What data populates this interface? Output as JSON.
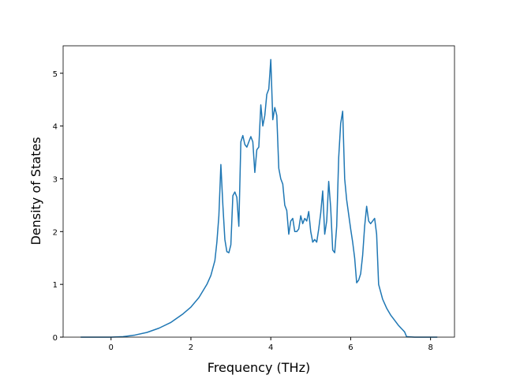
{
  "chart_data": {
    "type": "line",
    "xlabel": "Frequency (THz)",
    "ylabel": "Density of States",
    "x": [
      -0.76,
      -0.4,
      0,
      0.3,
      0.6,
      0.9,
      1.2,
      1.5,
      1.8,
      2.0,
      2.2,
      2.4,
      2.5,
      2.6,
      2.65,
      2.7,
      2.75,
      2.8,
      2.85,
      2.9,
      2.95,
      3.0,
      3.05,
      3.1,
      3.15,
      3.2,
      3.25,
      3.3,
      3.35,
      3.4,
      3.45,
      3.5,
      3.55,
      3.6,
      3.65,
      3.7,
      3.75,
      3.8,
      3.85,
      3.9,
      3.95,
      4.0,
      4.05,
      4.1,
      4.15,
      4.2,
      4.25,
      4.3,
      4.35,
      4.4,
      4.45,
      4.5,
      4.55,
      4.6,
      4.65,
      4.7,
      4.75,
      4.8,
      4.85,
      4.9,
      4.95,
      5.0,
      5.05,
      5.1,
      5.15,
      5.2,
      5.25,
      5.3,
      5.35,
      5.4,
      5.45,
      5.5,
      5.55,
      5.6,
      5.65,
      5.7,
      5.75,
      5.8,
      5.85,
      5.9,
      6.0,
      6.05,
      6.1,
      6.15,
      6.2,
      6.25,
      6.3,
      6.35,
      6.4,
      6.45,
      6.5,
      6.55,
      6.6,
      6.65,
      6.7,
      6.8,
      6.9,
      7.0,
      7.1,
      7.2,
      7.3,
      7.35,
      7.4,
      7.6,
      8.17
    ],
    "series": [
      {
        "color": "#1f77b4",
        "values": [
          0,
          0,
          0,
          0.01,
          0.04,
          0.09,
          0.17,
          0.28,
          0.44,
          0.57,
          0.75,
          1.0,
          1.17,
          1.45,
          1.8,
          2.3,
          3.27,
          2.5,
          1.85,
          1.62,
          1.6,
          1.75,
          2.68,
          2.75,
          2.65,
          2.1,
          3.7,
          3.82,
          3.65,
          3.6,
          3.7,
          3.8,
          3.7,
          3.12,
          3.55,
          3.6,
          4.4,
          4.0,
          4.2,
          4.6,
          4.7,
          5.26,
          4.12,
          4.35,
          4.2,
          3.2,
          3.0,
          2.9,
          2.5,
          2.4,
          1.95,
          2.2,
          2.25,
          2.0,
          2.0,
          2.05,
          2.3,
          2.15,
          2.25,
          2.2,
          2.38,
          2.0,
          1.8,
          1.85,
          1.8,
          2.05,
          2.35,
          2.77,
          1.95,
          2.2,
          2.95,
          2.45,
          1.65,
          1.6,
          2.1,
          3.4,
          4.05,
          4.28,
          3.0,
          2.6,
          2.05,
          1.8,
          1.5,
          1.03,
          1.08,
          1.2,
          1.55,
          2.1,
          2.48,
          2.2,
          2.15,
          2.2,
          2.25,
          1.95,
          1.0,
          0.72,
          0.55,
          0.42,
          0.32,
          0.22,
          0.14,
          0.1,
          0.01,
          0,
          0
        ]
      }
    ],
    "xlim": [
      -1.2,
      8.6
    ],
    "ylim": [
      0,
      5.52
    ],
    "xticks": [
      0,
      2,
      4,
      6,
      8
    ],
    "yticks": [
      0,
      1,
      2,
      3,
      4,
      5
    ],
    "grid": false
  }
}
